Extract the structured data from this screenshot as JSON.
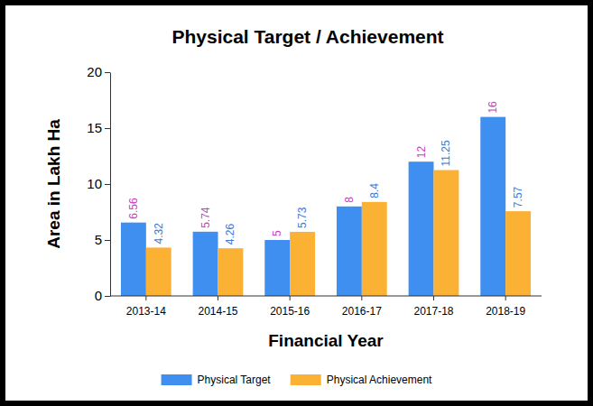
{
  "chart_data": {
    "type": "bar",
    "title": "Physical Target / Achievement",
    "x_label": "Financial Year",
    "y_label": "Area in Lakh Ha",
    "categories": [
      "2013-14",
      "2014-15",
      "2015-16",
      "2016-17",
      "2017-18",
      "2018-19"
    ],
    "series": [
      {
        "name": "Physical Target",
        "color": "#3f8ff0",
        "values": [
          6.56,
          5.74,
          5,
          8,
          12,
          16
        ]
      },
      {
        "name": "Physical Achievement",
        "color": "#fbb134",
        "values": [
          4.32,
          4.26,
          5.73,
          8.4,
          11.25,
          7.57
        ]
      }
    ],
    "ylim": [
      0,
      20
    ],
    "yticks": [
      0,
      5,
      10,
      15,
      20
    ],
    "grid": false,
    "legend": "bottom",
    "data_labels": true
  }
}
